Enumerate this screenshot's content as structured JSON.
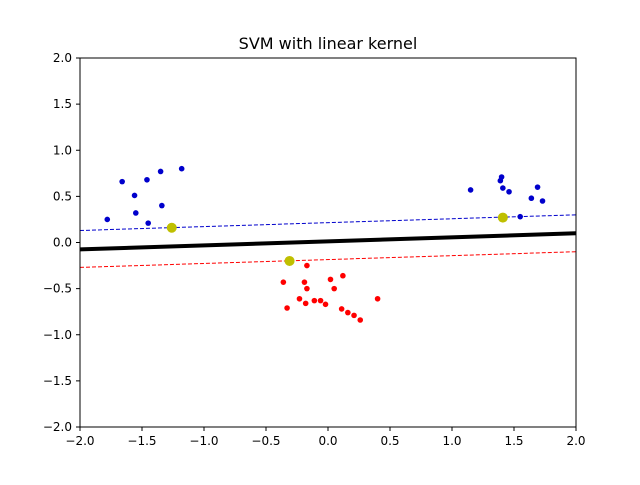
{
  "chart_data": {
    "type": "scatter",
    "title": "SVM with linear kernel",
    "xlabel": "",
    "ylabel": "",
    "xlim": [
      -2.0,
      2.0
    ],
    "ylim": [
      -2.0,
      2.0
    ],
    "x_ticks": [
      -2.0,
      -1.5,
      -1.0,
      -0.5,
      0.0,
      0.5,
      1.0,
      1.5,
      2.0
    ],
    "x_tick_labels": [
      "−2.0",
      "−1.5",
      "−1.0",
      "−0.5",
      "0.0",
      "0.5",
      "1.0",
      "1.5",
      "2.0"
    ],
    "y_ticks": [
      -2.0,
      -1.5,
      -1.0,
      -0.5,
      0.0,
      0.5,
      1.0,
      1.5,
      2.0
    ],
    "y_tick_labels": [
      "−2.0",
      "−1.5",
      "−1.0",
      "−0.5",
      "0.0",
      "0.5",
      "1.0",
      "1.5",
      "2.0"
    ],
    "grid": false,
    "colors": {
      "class_positive": "#0000cc",
      "class_negative": "#ff0000",
      "support_vectors": "#bfbf00",
      "decision_boundary": "#000000",
      "margin_positive": "#0000cc",
      "margin_negative": "#ff0000"
    },
    "series": [
      {
        "role": "class-positive-points",
        "color": "#0000cc",
        "points": [
          [
            -1.78,
            0.25
          ],
          [
            -1.66,
            0.66
          ],
          [
            -1.56,
            0.51
          ],
          [
            -1.55,
            0.32
          ],
          [
            -1.46,
            0.68
          ],
          [
            -1.45,
            0.21
          ],
          [
            -1.35,
            0.77
          ],
          [
            -1.34,
            0.4
          ],
          [
            -1.18,
            0.8
          ],
          [
            1.15,
            0.57
          ],
          [
            1.39,
            0.67
          ],
          [
            1.4,
            0.71
          ],
          [
            1.41,
            0.59
          ],
          [
            1.46,
            0.55
          ],
          [
            1.55,
            0.28
          ],
          [
            1.64,
            0.48
          ],
          [
            1.69,
            0.6
          ],
          [
            1.73,
            0.45
          ]
        ]
      },
      {
        "role": "class-negative-points",
        "color": "#ff0000",
        "points": [
          [
            -0.36,
            -0.43
          ],
          [
            -0.33,
            -0.71
          ],
          [
            -0.23,
            -0.61
          ],
          [
            -0.19,
            -0.43
          ],
          [
            -0.18,
            -0.66
          ],
          [
            -0.17,
            -0.5
          ],
          [
            -0.17,
            -0.25
          ],
          [
            -0.11,
            -0.63
          ],
          [
            -0.06,
            -0.63
          ],
          [
            -0.02,
            -0.67
          ],
          [
            0.02,
            -0.4
          ],
          [
            0.05,
            -0.5
          ],
          [
            0.11,
            -0.72
          ],
          [
            0.12,
            -0.36
          ],
          [
            0.16,
            -0.76
          ],
          [
            0.21,
            -0.79
          ],
          [
            0.26,
            -0.84
          ],
          [
            0.4,
            -0.61
          ]
        ]
      },
      {
        "role": "support-vectors",
        "color": "#bfbf00",
        "points": [
          [
            -1.26,
            0.16
          ],
          [
            1.41,
            0.27
          ],
          [
            -0.31,
            -0.2
          ]
        ]
      }
    ],
    "lines": [
      {
        "role": "decision-boundary",
        "style": "solid",
        "color": "#000000",
        "points": [
          [
            -2.0,
            -0.075
          ],
          [
            2.0,
            0.1
          ]
        ]
      },
      {
        "role": "margin-positive",
        "style": "dashed",
        "color": "#0000cc",
        "points": [
          [
            -2.0,
            0.13
          ],
          [
            2.0,
            0.3
          ]
        ]
      },
      {
        "role": "margin-negative",
        "style": "dashed",
        "color": "#ff0000",
        "points": [
          [
            -2.0,
            -0.27
          ],
          [
            2.0,
            -0.1
          ]
        ]
      }
    ]
  }
}
